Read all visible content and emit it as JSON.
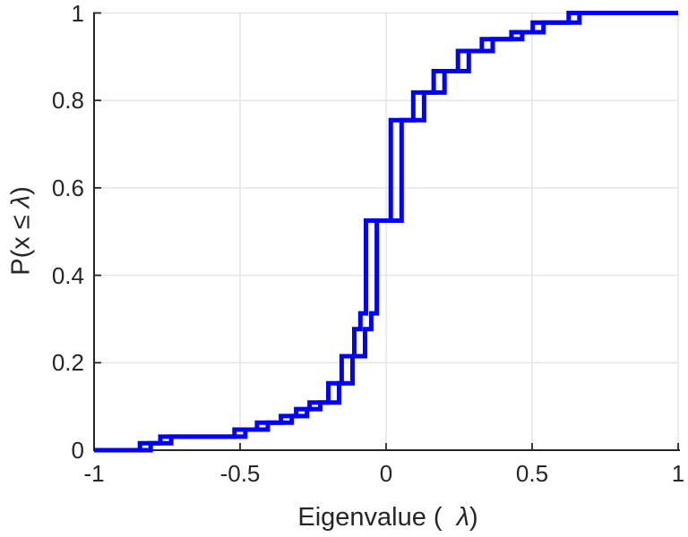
{
  "labels": {
    "xlabel_prefix": "Eigenvalue (  ",
    "xlabel_lambda": "λ",
    "xlabel_suffix": ")",
    "ylabel_prefix": "P(x ≤ ",
    "ylabel_lambda": "λ",
    "ylabel_suffix": ")"
  },
  "chart_data": {
    "type": "step",
    "subtype": "empirical-cdf",
    "title": "",
    "xlabel": "Eigenvalue (  λ)",
    "ylabel": "P(x ≤ λ)",
    "xlim": [
      -1,
      1
    ],
    "ylim": [
      0,
      1
    ],
    "grid": true,
    "legend": "none",
    "colors": {
      "line": "#0000ff",
      "axis": "#262626",
      "grid": "#e6e6e6",
      "tick_text": "#262626",
      "background": "#ffffff"
    },
    "line_width": 5,
    "xticks": {
      "values": [
        -1,
        -0.5,
        0,
        0.5,
        1
      ],
      "labels": [
        "-1",
        "-0.5",
        "0",
        "0.5",
        "1"
      ]
    },
    "yticks": {
      "values": [
        0,
        0.2,
        0.4,
        0.6,
        0.8,
        1
      ],
      "labels": [
        "0",
        "0.2",
        "0.4",
        "0.6",
        "0.8",
        "1"
      ]
    },
    "series": [
      {
        "name": "ecdf-curve-1",
        "start": [
          -1,
          0
        ],
        "end_x": 1,
        "steps": [
          [
            -0.843,
            0.016
          ],
          [
            -0.773,
            0.031
          ],
          [
            -0.519,
            0.047
          ],
          [
            -0.442,
            0.063
          ],
          [
            -0.36,
            0.078
          ],
          [
            -0.308,
            0.094
          ],
          [
            -0.262,
            0.109
          ],
          [
            -0.198,
            0.153
          ],
          [
            -0.152,
            0.215
          ],
          [
            -0.109,
            0.277
          ],
          [
            -0.088,
            0.313
          ],
          [
            -0.069,
            0.525
          ],
          [
            0.016,
            0.755
          ],
          [
            0.093,
            0.818
          ],
          [
            0.163,
            0.867
          ],
          [
            0.246,
            0.913
          ],
          [
            0.328,
            0.94
          ],
          [
            0.429,
            0.956
          ],
          [
            0.502,
            0.978
          ],
          [
            0.625,
            1.0
          ]
        ]
      },
      {
        "name": "ecdf-curve-2",
        "start": [
          -1,
          0
        ],
        "end_x": 1,
        "steps": [
          [
            -0.806,
            0.016
          ],
          [
            -0.736,
            0.031
          ],
          [
            -0.482,
            0.047
          ],
          [
            -0.405,
            0.063
          ],
          [
            -0.323,
            0.078
          ],
          [
            -0.271,
            0.094
          ],
          [
            -0.225,
            0.109
          ],
          [
            -0.161,
            0.153
          ],
          [
            -0.115,
            0.215
          ],
          [
            -0.072,
            0.277
          ],
          [
            -0.051,
            0.313
          ],
          [
            -0.032,
            0.525
          ],
          [
            0.053,
            0.755
          ],
          [
            0.13,
            0.818
          ],
          [
            0.2,
            0.867
          ],
          [
            0.283,
            0.913
          ],
          [
            0.365,
            0.94
          ],
          [
            0.466,
            0.956
          ],
          [
            0.539,
            0.978
          ],
          [
            0.662,
            1.0
          ]
        ]
      }
    ]
  }
}
